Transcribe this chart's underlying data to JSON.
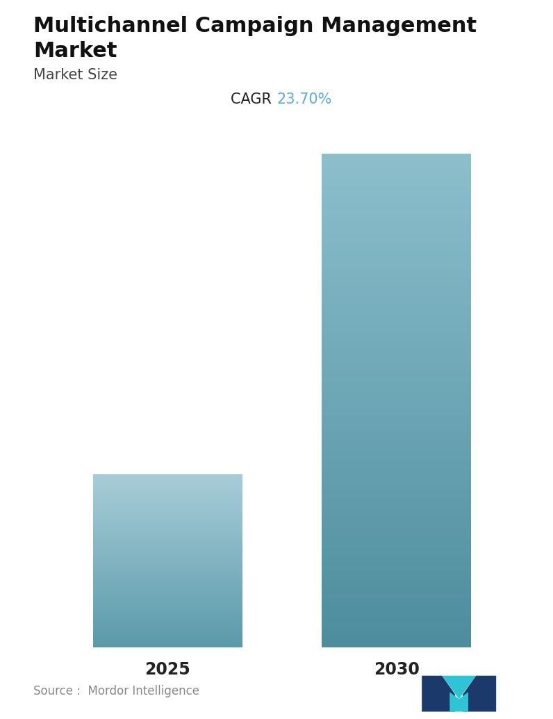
{
  "title_line1": "Multichannel Campaign Management",
  "title_line2": "Market",
  "subtitle": "Market Size",
  "cagr_label": "CAGR ",
  "cagr_value": "23.70%",
  "cagr_color": "#5aace4",
  "categories": [
    "2025",
    "2030"
  ],
  "values": [
    1.0,
    2.85
  ],
  "bar_top_color_1": "#a8cdd8",
  "bar_bottom_color_1": "#5a9aaa",
  "bar_top_color_2": "#8dbfcc",
  "bar_bottom_color_2": "#4d8d9e",
  "background_color": "#ffffff",
  "source_text": "Source :  Mordor Intelligence",
  "title_fontsize": 22,
  "subtitle_fontsize": 15,
  "tick_fontsize": 17,
  "source_fontsize": 12,
  "cagr_fontsize": 15
}
